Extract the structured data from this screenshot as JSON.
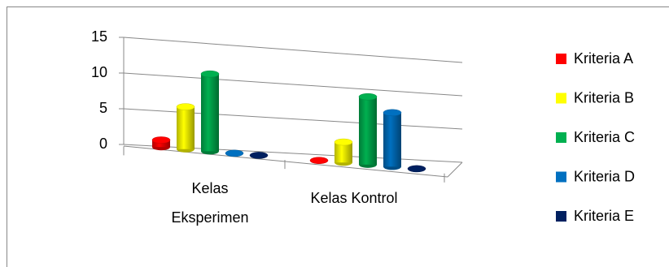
{
  "chart_data": {
    "type": "bar3d",
    "categories": [
      "Kelas Eksperimen",
      "Kelas Kontrol"
    ],
    "series": [
      {
        "name": "Kriteria A",
        "color": "#ff0000",
        "values": [
          1,
          0
        ]
      },
      {
        "name": "Kriteria B",
        "color": "#ffff00",
        "values": [
          6,
          3
        ]
      },
      {
        "name": "Kriteria C",
        "color": "#00b050",
        "values": [
          11,
          10
        ]
      },
      {
        "name": "Kriteria D",
        "color": "#0070c0",
        "values": [
          0,
          8
        ]
      },
      {
        "name": "Kriteria E",
        "color": "#002060",
        "values": [
          0,
          0
        ]
      }
    ],
    "ylim": [
      0,
      15
    ],
    "yticks": [
      0,
      5,
      10,
      15
    ],
    "grid": true,
    "legend": "right"
  }
}
